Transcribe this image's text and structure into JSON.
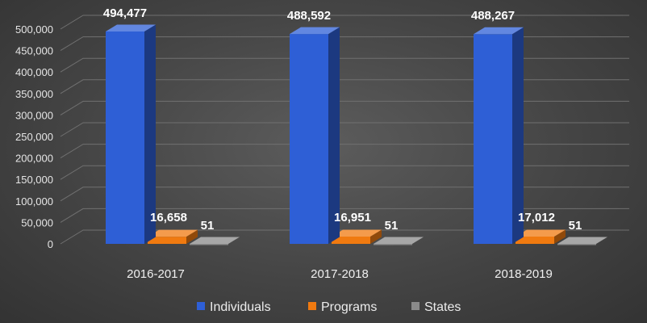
{
  "chart_data": {
    "type": "bar",
    "style": "3d-clustered-column",
    "categories": [
      "2016-2017",
      "2017-2018",
      "2018-2019"
    ],
    "series": [
      {
        "name": "Individuals",
        "values": [
          494477,
          488592,
          488267
        ],
        "labels": [
          "494,477",
          "488,592",
          "488,267"
        ],
        "color": "#2e5fd6"
      },
      {
        "name": "Programs",
        "values": [
          16658,
          16951,
          17012
        ],
        "labels": [
          "16,658",
          "16,951",
          "17,012"
        ],
        "color": "#f07a10"
      },
      {
        "name": "States",
        "values": [
          51,
          51,
          51
        ],
        "labels": [
          "51",
          "51",
          "51"
        ],
        "color": "#8a8a8a"
      }
    ],
    "yticks": [
      "0",
      "50,000",
      "100,000",
      "150,000",
      "200,000",
      "250,000",
      "300,000",
      "350,000",
      "400,000",
      "450,000",
      "500,000"
    ],
    "ylim": [
      0,
      500000
    ],
    "grid": true,
    "legend_position": "bottom"
  }
}
